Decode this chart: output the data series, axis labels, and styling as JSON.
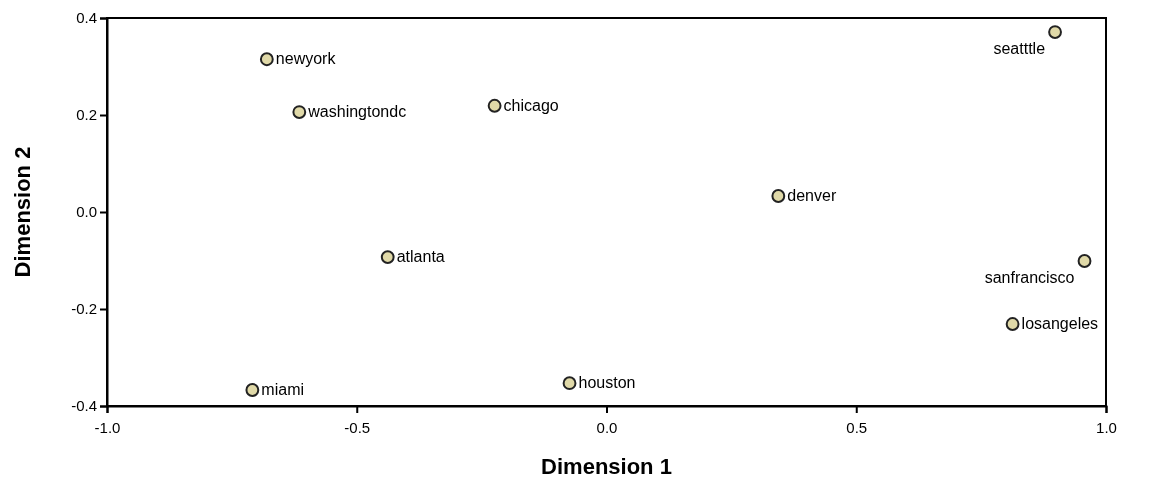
{
  "chart_data": {
    "type": "scatter",
    "xlabel": "Dimension 1",
    "ylabel": "Dimension 2",
    "x": [
      -0.68,
      -0.615,
      -0.224,
      0.898,
      0.344,
      -0.438,
      0.957,
      0.813,
      -0.074,
      -0.709
    ],
    "values": [
      0.315,
      0.206,
      0.219,
      0.371,
      0.033,
      -0.093,
      -0.101,
      -0.231,
      -0.353,
      -0.367
    ],
    "color": "#e0d9a8",
    "marker": "circle",
    "xlim": [
      -1,
      1
    ],
    "xticks": [
      {
        "value": -1,
        "label": "-1.0"
      },
      {
        "value": -0.5,
        "label": "-0.5"
      },
      {
        "value": 0,
        "label": "0.0"
      },
      {
        "value": 0.5,
        "label": "0.5"
      },
      {
        "value": 1,
        "label": "1.0"
      }
    ],
    "ylim": [
      -0.4,
      0.4
    ],
    "yticks": [
      {
        "value": -0.4,
        "label": "-0.4"
      },
      {
        "value": -0.2,
        "label": "-0.2"
      },
      {
        "value": 0,
        "label": "0.0"
      },
      {
        "value": 0.2,
        "label": "0.2"
      },
      {
        "value": 0.4,
        "label": "0.4"
      }
    ],
    "annotations": [
      {
        "text": "newyork",
        "x": -0.68,
        "y": 0.315
      },
      {
        "text": "washingtondc",
        "x": -0.615,
        "y": 0.206
      },
      {
        "text": "chicago",
        "x": -0.224,
        "y": 0.219
      },
      {
        "text": "seatttle",
        "x": 0.898,
        "y": 0.371
      },
      {
        "text": "denver",
        "x": 0.344,
        "y": 0.033
      },
      {
        "text": "atlanta",
        "x": -0.438,
        "y": -0.093
      },
      {
        "text": "sanfrancisco",
        "x": 0.957,
        "y": -0.101
      },
      {
        "text": "losangeles",
        "x": 0.813,
        "y": -0.231
      },
      {
        "text": "houston",
        "x": -0.074,
        "y": -0.353
      },
      {
        "text": "miami",
        "x": -0.709,
        "y": -0.367
      }
    ],
    "grid": false
  }
}
